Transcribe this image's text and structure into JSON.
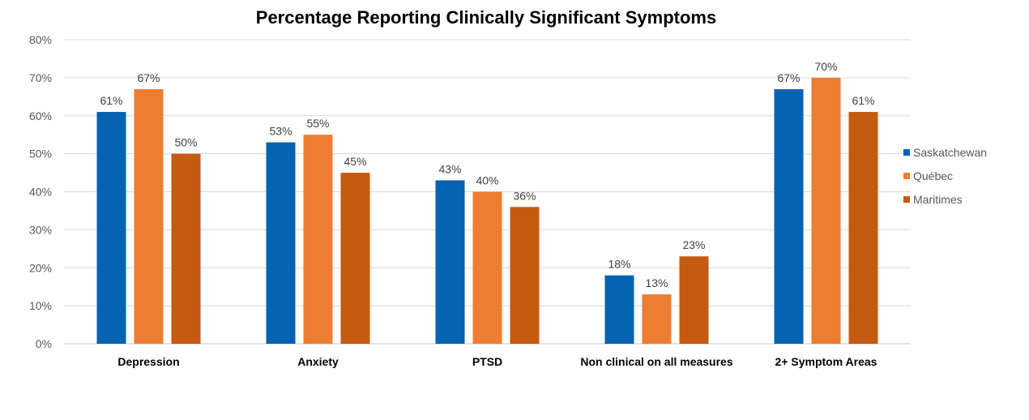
{
  "chart_data": {
    "type": "bar",
    "title": "Percentage Reporting Clinically Significant Symptoms",
    "xlabel": "",
    "ylabel": "",
    "ylim": [
      0,
      80
    ],
    "yticks": [
      "0%",
      "10%",
      "20%",
      "30%",
      "40%",
      "50%",
      "60%",
      "70%",
      "80%"
    ],
    "grid": true,
    "legend_position": "right",
    "categories": [
      "Depression",
      "Anxiety",
      "PTSD",
      "Non clinical on all measures",
      "2+ Symptom Areas"
    ],
    "series": [
      {
        "name": "Saskatchewan",
        "color": "#0563B1",
        "values": [
          61,
          53,
          43,
          18,
          67
        ],
        "labels": [
          "61%",
          "53%",
          "43%",
          "18%",
          "67%"
        ]
      },
      {
        "name": "Québec",
        "color": "#ED7D31",
        "values": [
          67,
          55,
          40,
          13,
          70
        ],
        "labels": [
          "67%",
          "55%",
          "40%",
          "13%",
          "70%"
        ]
      },
      {
        "name": "Maritimes",
        "color": "#C55A11",
        "values": [
          50,
          45,
          36,
          23,
          61
        ],
        "labels": [
          "50%",
          "45%",
          "36%",
          "23%",
          "61%"
        ]
      }
    ]
  }
}
